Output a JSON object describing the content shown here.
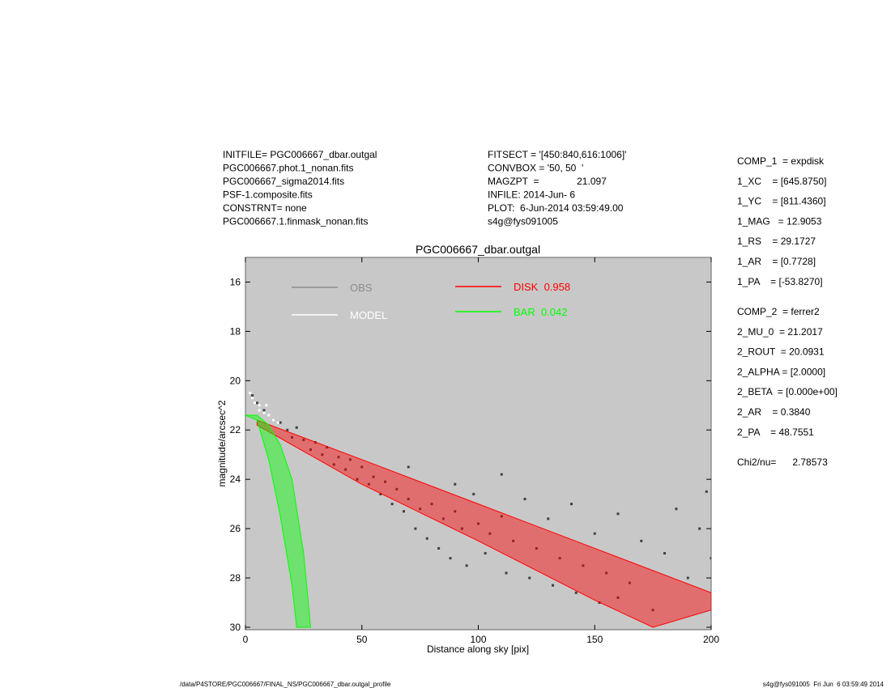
{
  "header": {
    "left": [
      "INITFILE= PGC006667_dbar.outgal",
      "PGC006667.phot.1_nonan.fits",
      "PGC006667_sigma2014.fits",
      "PSF-1.composite.fits",
      "CONSTRNT= none",
      "PGC006667.1.finmask_nonan.fits"
    ],
    "middle": [
      "FITSECT = '[450:840,616:1006]'",
      "CONVBOX = '50, 50  '",
      "MAGZPT  =              21.097",
      "INFILE: 2014-Jun- 6",
      "PLOT:  6-Jun-2014 03:59:49.00",
      "s4g@fys091005"
    ],
    "params": [
      "COMP_1  = expdisk",
      "1_XC    = [645.8750]",
      "1_YC    = [811.4360]",
      "1_MAG   = 12.9053",
      "1_RS    = 29.1727",
      "1_AR    = [0.7728]",
      "1_PA    = [-53.8270]",
      "COMP_2  = ferrer2",
      "2_MU_0  = 21.2017",
      "2_ROUT  = 20.0931",
      "2_ALPHA = [2.0000]",
      "2_BETA  = [0.000e+00]",
      "2_AR    = 0.3840",
      "2_PA    = 48.7551",
      "Chi2/nu=      2.78573"
    ]
  },
  "footer": {
    "left": "/data/P4STORE/PGC006667/FINAL_NS/PGC006667_dbar.outgal_profile",
    "right": "s4g@fys091005  Fri Jun  6 03:59:49 2014"
  },
  "chart_data": {
    "type": "scatter",
    "title": "PGC006667_dbar.outgal",
    "xlabel": "Distance along sky [pix]",
    "ylabel": "magnitude/arcsec^2",
    "xlim": [
      0,
      200
    ],
    "ylim": [
      30.1,
      15
    ],
    "xticks": [
      0,
      50,
      100,
      150,
      200
    ],
    "yticks": [
      16,
      18,
      20,
      22,
      24,
      26,
      28,
      30
    ],
    "series": [
      {
        "name": "OBS",
        "color": "#404040",
        "legend_color": "#8c8c8c",
        "kind": "points",
        "x": [
          3,
          5,
          8,
          12,
          15,
          18,
          20,
          22,
          25,
          28,
          30,
          33,
          35,
          38,
          40,
          43,
          45,
          48,
          50,
          53,
          55,
          58,
          60,
          63,
          65,
          68,
          70,
          73,
          75,
          78,
          80,
          83,
          85,
          88,
          90,
          93,
          95,
          98,
          100,
          103,
          105,
          110,
          112,
          115,
          120,
          122,
          125,
          130,
          132,
          135,
          140,
          142,
          145,
          150,
          152,
          155,
          160,
          165,
          170,
          175,
          180,
          185,
          190,
          195,
          200,
          198,
          160,
          110,
          90,
          70
        ],
        "values": [
          20.6,
          20.9,
          21.2,
          21.6,
          21.7,
          22.0,
          22.3,
          21.9,
          22.4,
          22.8,
          22.5,
          23.0,
          22.7,
          23.4,
          23.1,
          23.6,
          23.2,
          24.0,
          23.5,
          24.2,
          23.9,
          24.6,
          24.1,
          25.0,
          24.4,
          25.3,
          24.8,
          26.0,
          25.2,
          26.4,
          25.0,
          26.8,
          25.6,
          27.2,
          25.3,
          26.0,
          27.5,
          24.6,
          25.8,
          27.0,
          26.2,
          25.5,
          27.8,
          26.5,
          24.8,
          28.0,
          26.8,
          25.6,
          28.3,
          27.2,
          25.0,
          28.6,
          27.5,
          26.2,
          29.0,
          27.8,
          25.4,
          28.2,
          26.5,
          29.3,
          27.0,
          25.2,
          28.0,
          26.0,
          27.2,
          24.5,
          28.8,
          23.8,
          24.2,
          23.5
        ]
      },
      {
        "name": "MODEL",
        "color": "#ffffff",
        "legend_color": "#ffffff",
        "kind": "points",
        "x": [
          2,
          4,
          6,
          8,
          10,
          12,
          14,
          6,
          9,
          3
        ],
        "values": [
          20.5,
          20.9,
          21.0,
          21.3,
          21.4,
          21.6,
          21.7,
          21.2,
          21.0,
          20.7
        ]
      },
      {
        "name": "DISK  0.958",
        "color": "#ff0000",
        "legend_color": "#ff0000",
        "kind": "band",
        "x": [
          5,
          50,
          100,
          150,
          200,
          200,
          175,
          150,
          100,
          50,
          5
        ],
        "values": [
          21.6,
          23.2,
          25.0,
          26.8,
          28.6,
          29.3,
          30.0,
          28.9,
          26.5,
          24.2,
          21.8
        ]
      },
      {
        "name": "BAR  0.042",
        "color": "#00ff00",
        "legend_color": "#00ff00",
        "kind": "band",
        "x": [
          0,
          5,
          10,
          15,
          20,
          25,
          28,
          22,
          20,
          15,
          10,
          5
        ],
        "values": [
          21.4,
          21.4,
          21.8,
          22.6,
          24.0,
          27.0,
          30.0,
          30.0,
          28.3,
          25.5,
          23.2,
          21.6
        ]
      }
    ]
  }
}
